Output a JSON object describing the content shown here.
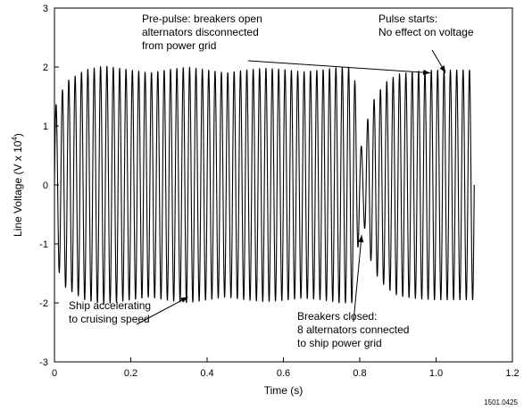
{
  "chart_data": {
    "type": "line",
    "xlabel": "Time (s)",
    "ylabel_main": "Line Voltage (V x 10",
    "ylabel_sup": "4",
    "ylabel_close": ")",
    "xlim": [
      0,
      1.2
    ],
    "ylim": [
      -3,
      3
    ],
    "xticks": [
      0,
      0.2,
      0.4,
      0.6,
      0.8,
      1.0,
      1.2
    ],
    "xtick_labels": [
      "0",
      "0.2",
      "0.4",
      "0.6",
      "0.8",
      "1.0",
      "1.2"
    ],
    "yticks": [
      -3,
      -2,
      -1,
      0,
      1,
      2,
      3
    ],
    "ytick_labels": [
      "-3",
      "-2",
      "-1",
      "0",
      "1",
      "2",
      "3"
    ],
    "grid": false,
    "series": [
      {
        "frequency_hz": 60,
        "x_start": 0,
        "x_end": 1.1,
        "amplitude_envelope": {
          "x": [
            0,
            0.03,
            0.08,
            0.13,
            0.2,
            0.25,
            0.3,
            0.35,
            0.4,
            0.45,
            0.5,
            0.55,
            0.6,
            0.65,
            0.7,
            0.75,
            0.785,
            0.79,
            0.8,
            0.81,
            0.82,
            0.84,
            0.87,
            0.9,
            0.95,
            1.0,
            1.05,
            1.1
          ],
          "y": [
            1.3,
            1.75,
            1.95,
            2.02,
            1.95,
            1.9,
            1.96,
            2.0,
            1.95,
            1.9,
            1.95,
            1.98,
            1.96,
            1.92,
            1.95,
            2.0,
            2.0,
            1.5,
            0.7,
            0.6,
            1.1,
            1.5,
            1.75,
            1.88,
            1.93,
            1.95,
            1.95,
            1.95
          ]
        }
      }
    ],
    "annotations": [
      {
        "lines": [
          "Pre-pulse: breakers open",
          "alternators disconnected",
          "from power grid"
        ],
        "arrow_to": [
          0.985,
          1.9
        ]
      },
      {
        "lines": [
          "Pulse starts:",
          "No effect on voltage"
        ],
        "arrow_to": [
          1.025,
          1.9
        ]
      },
      {
        "lines": [
          "Ship accelerating",
          "to cruising speed"
        ],
        "arrow_to": [
          0.35,
          -1.9
        ]
      },
      {
        "lines": [
          "Breakers closed:",
          "8 alternators connected",
          "to ship power grid"
        ],
        "arrow_to": [
          0.805,
          -0.85
        ]
      }
    ],
    "figure_id": "1501.0425"
  }
}
